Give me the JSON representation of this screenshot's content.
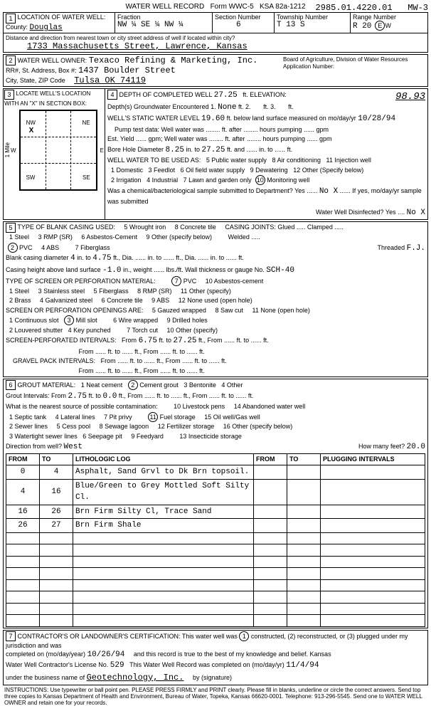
{
  "header": {
    "title": "WATER WELL RECORD",
    "form": "Form WWC-5",
    "ksa": "KSA 82a-1212",
    "id": "2985.01.4220.01",
    "mw": "MW-3"
  },
  "sec1": {
    "label": "LOCATION OF WATER WELL:",
    "county_label": "County:",
    "county": "Douglas",
    "fraction_label": "Fraction",
    "fraction": "NW ¼ SE ¼ NW ¼",
    "section_label": "Section Number",
    "section": "6",
    "township_label": "Township Number",
    "township": "T 13 S",
    "range_label": "Range Number",
    "range": "R 20",
    "ew": "E",
    "dist_label": "Distance and direction from nearest town or city street address of well if located within city?",
    "address": "1733 Massachusetts Street, Lawrence, Kansas"
  },
  "sec2": {
    "label": "WATER WELL OWNER:",
    "owner": "Texaco Refining & Marketing, Inc.",
    "rr_label": "RR#, St. Address, Box #:",
    "street": "1437 Boulder Street",
    "city_label": "City, State, ZIP Code",
    "city": "Tulsa OK  74119",
    "board": "Board of Agriculture, Division of Water Resources",
    "app_label": "Application Number:"
  },
  "sec3": {
    "label": "LOCATE WELL'S LOCATION WITH AN \"X\" IN SECTION BOX:",
    "nw": "NW",
    "ne": "NE",
    "sw": "SW",
    "se": "SE",
    "w": "W",
    "e": "E",
    "n": "N",
    "s": "S",
    "x": "X",
    "mile": "1 Mile"
  },
  "sec4": {
    "label": "DEPTH OF COMPLETED WELL",
    "depth": "27.25",
    "elev_label": "ft. ELEVATION:",
    "elev": "98.93",
    "gw_label": "Depth(s) Groundwater Encountered 1.",
    "gw1": "None",
    "gw2": "ft. 2.",
    "gw3": "ft. 3.",
    "gw_ft": "ft.",
    "static_label": "WELL'S STATIC WATER LEVEL",
    "static": "19.60",
    "static_after": "ft. below land surface measured on mo/day/yr",
    "static_date": "10/28/94",
    "pump_label": "Pump test data: Well water was",
    "pump_after": "ft. after",
    "pump_hrs": "hours pumping",
    "gpm": "gpm",
    "yield_label": "Est. Yield",
    "yield_after": "gpm; Well water was",
    "bore_label": "Bore Hole Diameter",
    "bore1": "8.25",
    "bore_in": "in. to",
    "bore2": "27.25",
    "bore_after": "ft. and",
    "bore_in2": "in. to",
    "bore_ft2": "ft.",
    "use_label": "WELL WATER TO BE USED AS:",
    "u1": "1 Domestic",
    "u2": "2 Irrigation",
    "u3": "3 Feedlot",
    "u4": "4 Industrial",
    "u5": "5 Public water supply",
    "u6": "6 Oil field water supply",
    "u7": "7 Lawn and garden only",
    "u8": "8 Air conditioning",
    "u9": "9 Dewatering",
    "u10": "Monitoring well",
    "u11": "11 Injection well",
    "u12": "12 Other (Specify below)",
    "chem": "Was a chemical/bacteriological sample submitted to Department? Yes",
    "chem_no": "No X",
    "chem_after": "If yes, mo/day/yr sample was submitted",
    "disinfect": "Water Well Disinfected? Yes",
    "dis_no": "No X"
  },
  "sec5": {
    "label": "TYPE OF BLANK CASING USED:",
    "c1": "1 Steel",
    "c2": "PVC",
    "c3": "3 RMP (SR)",
    "c4": "4 ABS",
    "c5": "5 Wrought iron",
    "c6": "6 Asbestos-Cement",
    "c7": "7 Fiberglass",
    "c8": "8 Concrete tile",
    "c9": "9 Other (specify below)",
    "joints_label": "CASING JOINTS: Glued",
    "joints2": "Clamped",
    "joints3": "Welded",
    "threaded": "Threaded",
    "threaded_val": "F.J.",
    "dia_label": "Blank casing diameter",
    "dia1": "4",
    "dia_in": "in. to",
    "dia2": "4.75",
    "dia_ftdia": "ft., Dia.",
    "dia_into": "in. to",
    "dia_ft": "ft., Dia.",
    "dia_into2": "in. to",
    "dia_ft2": "ft.",
    "height_label": "Casing height above land surface",
    "height": "-1.0",
    "weight_label": "in., weight",
    "weight_after": "lbs./ft. Wall thickness or gauge No.",
    "gauge": "SCH-40",
    "screen_label": "TYPE OF SCREEN OR PERFORATION MATERIAL:",
    "s1": "1 Steel",
    "s2": "2 Brass",
    "s3": "3 Stainless steel",
    "s4": "4 Galvanized steel",
    "s5": "5 Fiberglass",
    "s6": "6 Concrete tile",
    "s7": "PVC",
    "s8": "8 RMP (SR)",
    "s9": "9 ABS",
    "s10": "10 Asbestos-cement",
    "s11": "11 Other (specify)",
    "s12": "12 None used (open hole)",
    "open_label": "SCREEN OR PERFORATION OPENINGS ARE:",
    "o1": "1 Continuous slot",
    "o2": "2 Louvered shutter",
    "o3": "Mill slot",
    "o4": "4 Key punched",
    "o5": "5 Gauzed wrapped",
    "o6": "6 Wire wrapped",
    "o7": "7 Torch cut",
    "o8": "8 Saw cut",
    "o9": "9 Drilled holes",
    "o10": "10 Other (specify)",
    "o11": "11 None (open hole)",
    "perf_label": "SCREEN-PERFORATED INTERVALS:",
    "from": "From",
    "to": "ft. to",
    "from2": "ft., From",
    "to2": "ft. to",
    "ft": "ft.",
    "perf_from": "6.75",
    "perf_to": "27.25",
    "gravel_label": "GRAVEL PACK INTERVALS:"
  },
  "sec6": {
    "label": "GROUT MATERIAL:",
    "g1": "1 Neat cement",
    "g2": "Cement grout",
    "g3": "3 Bentonite",
    "g4": "4 Other",
    "gint_label": "Grout Intervals: From",
    "gfrom": "2.75",
    "gto": "ft. to",
    "gto_val": "0.0",
    "gft": "ft., From",
    "contam_label": "What is the nearest source of possible contamination:",
    "p1": "1 Septic tank",
    "p2": "2 Sewer lines",
    "p3": "3 Watertight sewer lines",
    "p4": "4 Lateral lines",
    "p5": "5 Cess pool",
    "p6": "6 Seepage pit",
    "p7": "7 Pit privy",
    "p8": "8 Sewage lagoon",
    "p9": "9 Feedyard",
    "p10": "10 Livestock pens",
    "p11": "Fuel storage",
    "p12": "12 Fertilizer storage",
    "p13": "13 Insecticide storage",
    "p14": "14 Abandoned water well",
    "p15": "15 Oil well/Gas well",
    "p16": "16 Other (specify below)",
    "dir_label": "Direction from well?",
    "dir": "West",
    "howmany": "How many feet?",
    "howmany_val": "20.0",
    "log_from": "FROM",
    "log_to": "TO",
    "log_lith": "LITHOLOGIC LOG",
    "log_plug": "PLUGGING INTERVALS",
    "rows": [
      {
        "f": "0",
        "t": "4",
        "d": "Asphalt, Sand Grvl to Dk Brn topsoil."
      },
      {
        "f": "4",
        "t": "16",
        "d": "Blue/Green to Grey Mottled Soft Silty Cl."
      },
      {
        "f": "16",
        "t": "26",
        "d": "Brn Firm Silty Cl, Trace Sand"
      },
      {
        "f": "26",
        "t": "27",
        "d": "Brn Firm Shale"
      }
    ]
  },
  "sec7": {
    "cert": "CONTRACTOR'S OR LANDOWNER'S CERTIFICATION: This water well was",
    "cert2": "constructed, (2) reconstructed, or (3) plugged under my jurisdiction and was",
    "cert3": "completed on (mo/day/year)",
    "date1": "10/26/94",
    "cert4": "and this record is true to the best of my knowledge and belief. Kansas",
    "lic_label": "Water Well Contractor's License No.",
    "lic": "529",
    "cert5": "This Water Well Record was completed on (mo/day/yr)",
    "date2": "11/4/94",
    "biz_label": "under the business name of",
    "biz": "Geotechnology, Inc.",
    "sig": "by (signature)",
    "instr": "INSTRUCTIONS: Use typewriter or ball point pen. PLEASE PRESS FIRMLY and PRINT clearly. Please fill in blanks, underline or circle the correct answers. Send top three copies to Kansas Department of Health and Environment, Bureau of Water, Topeka, Kansas 66620-0001. Telephone: 913-296-5545. Send one to WATER WELL OWNER and retain one for your records."
  }
}
